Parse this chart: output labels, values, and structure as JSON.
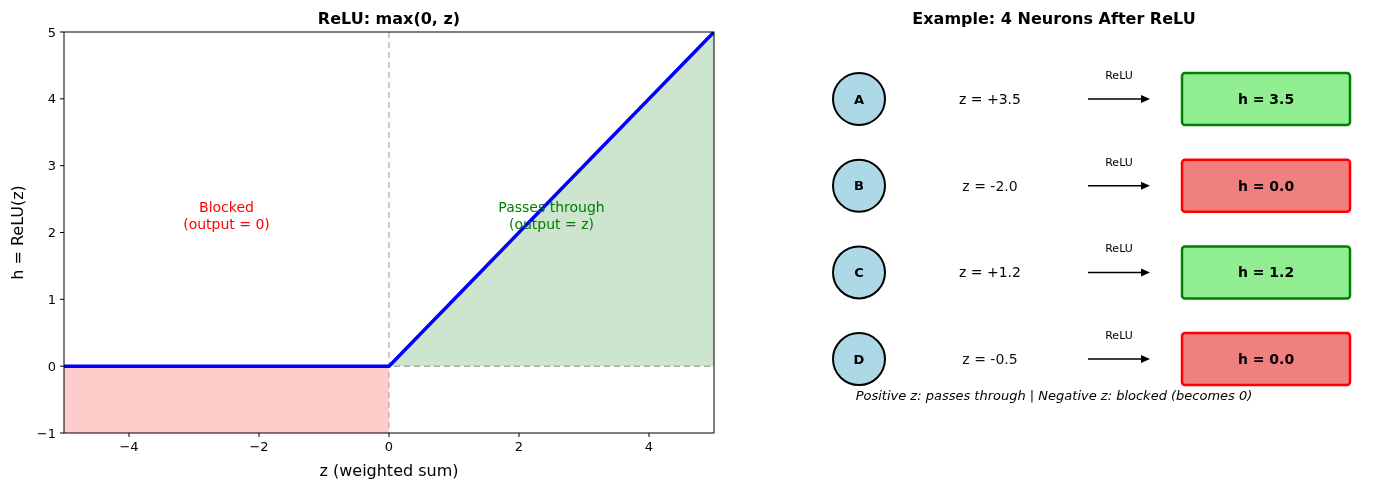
{
  "chart_data": [
    {
      "type": "line",
      "title": "ReLU: max(0, z)",
      "xlabel": "z (weighted sum)",
      "ylabel": "h = ReLU(z)",
      "series": [
        {
          "type": "area",
          "x": [
            -5,
            0
          ],
          "values": [
            -1,
            -1
          ],
          "color": "#ffcccc"
        },
        {
          "type": "area",
          "x": [
            0,
            5
          ],
          "values": [
            0,
            5
          ],
          "color": "#cde4cd"
        },
        {
          "type": "line",
          "x": [
            -5,
            0,
            5
          ],
          "values": [
            0,
            0,
            5
          ],
          "color": "#0000ff"
        }
      ],
      "xlim": [
        -5,
        5
      ],
      "ylim": [
        -1,
        5
      ],
      "xticks": [
        {
          "value": -4,
          "label": "−4"
        },
        {
          "value": -2,
          "label": "−2"
        },
        0,
        2,
        4
      ],
      "yticks": [
        {
          "value": -1,
          "label": "−1"
        },
        0,
        1,
        2,
        3,
        4,
        5
      ],
      "ref_lines": [
        {
          "axis": "x",
          "value": 0,
          "color": "#bbbbbb",
          "line_style": "dashed"
        },
        {
          "axis": "y",
          "value": 0,
          "color": "#aaaaaa",
          "line_style": "dashed"
        }
      ],
      "annotations": [
        "Blocked\n(output = 0)",
        "Passes through\n(output = z)"
      ],
      "grid": false
    },
    {
      "type": "other",
      "title": "Example: 4 Neurons After ReLU",
      "categories": [
        "A",
        "B",
        "C",
        "D"
      ],
      "series": [
        {
          "values": [
            3.5,
            -2.0,
            1.2,
            -0.5
          ],
          "value_labels": [
            "z = +3.5",
            "z = -2.0",
            "z = +1.2",
            "z = -0.5"
          ]
        },
        {
          "values": [
            3.5,
            0.0,
            1.2,
            0.0
          ],
          "value_labels": [
            "h = 3.5",
            "h = 0.0",
            "h = 1.2",
            "h = 0.0"
          ],
          "colors": [
            "#90ee90",
            "#f08080",
            "#90ee90",
            "#f08080"
          ]
        }
      ],
      "annotations": [
        "ReLU",
        "ReLU",
        "ReLU",
        "ReLU",
        "Positive z: passes through | Negative z: blocked (becomes 0)"
      ]
    }
  ]
}
